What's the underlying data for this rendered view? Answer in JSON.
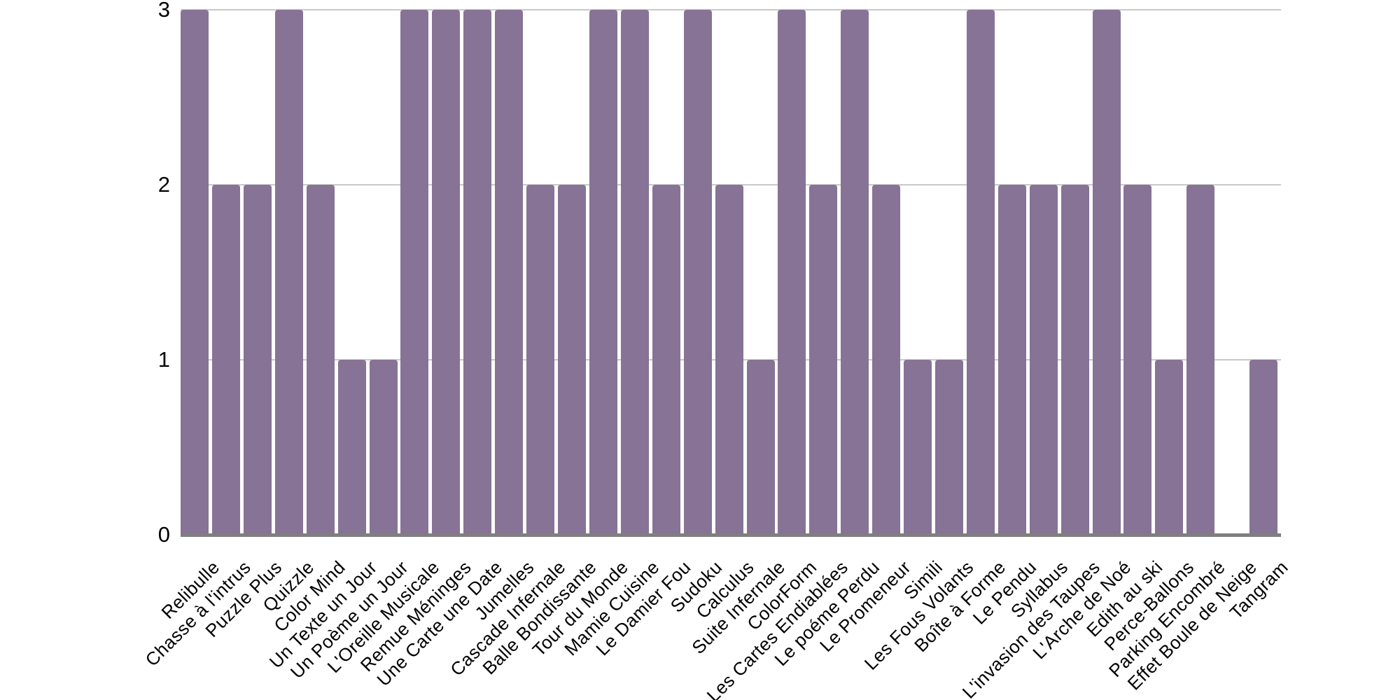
{
  "chart_data": {
    "type": "bar",
    "title": "",
    "xlabel": "",
    "ylabel": "",
    "categories": [
      "Relibulle",
      "Chasse à l'intrus",
      "Puzzle Plus",
      "Quizzle",
      "Color Mind",
      "Un Texte un Jour",
      "Un Poème un Jour",
      "L'Oreille Musicale",
      "Remue Méninges",
      "Une Carte une Date",
      "Jumelles",
      "Cascade Infernale",
      "Balle Bondissante",
      "Tour du Monde",
      "Mamie Cuisine",
      "Le Damier Fou",
      "Sudoku",
      "Calculus",
      "Suite Infernale",
      "ColorForm",
      "Les Cartes Endiablées",
      "Le poéme Perdu",
      "Le Promeneur",
      "Simili",
      "Les Fous Volants",
      "Boîte à Forme",
      "Le Pendu",
      "Syllabus",
      "L'invasion des Taupes",
      "L'Arche de Noé",
      "Edith au ski",
      "Perce-Ballons",
      "Parking Encombré",
      "Effet Boule de Neige",
      "Tangram"
    ],
    "values": [
      3,
      2,
      2,
      3,
      2,
      1,
      1,
      3,
      3,
      3,
      3,
      2,
      2,
      3,
      3,
      2,
      3,
      2,
      1,
      3,
      2,
      3,
      2,
      1,
      1,
      3,
      2,
      2,
      2,
      3,
      2,
      1,
      2,
      0,
      1
    ],
    "ylim": [
      0,
      3
    ],
    "yticks": [
      "0",
      "1",
      "2",
      "3"
    ],
    "grid": "horizontal",
    "legend": "none",
    "colors": {
      "bar": "#877396",
      "gridline": "#c9c9c9",
      "axis_line": "#7f7f7f",
      "tick_text": "#000000",
      "background": "#ffffff"
    }
  }
}
